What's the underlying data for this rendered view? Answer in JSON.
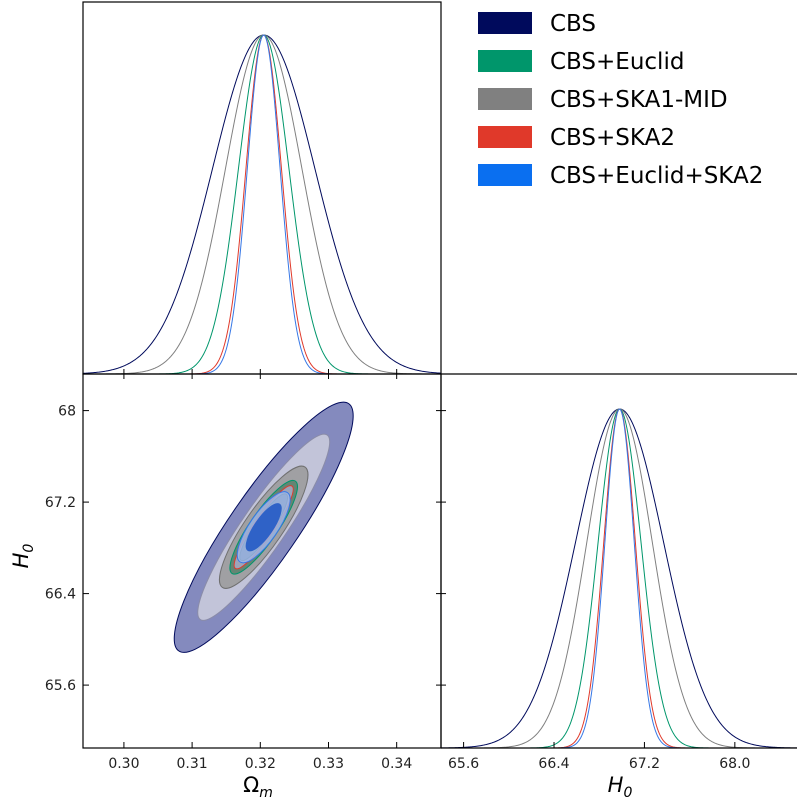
{
  "chart_data": [
    {
      "type": "line",
      "panel": "Omega_m marginal",
      "x_param": "Omega_m",
      "center": 0.3205,
      "series": [
        {
          "name": "CBS",
          "color": "#000a5c",
          "sigma": 0.0075
        },
        {
          "name": "CBS+Euclid",
          "color": "#00966b",
          "sigma": 0.0037
        },
        {
          "name": "CBS+SKA1-MID",
          "color": "#808080",
          "sigma": 0.0056
        },
        {
          "name": "CBS+SKA2",
          "color": "#e0392a",
          "sigma": 0.0026
        },
        {
          "name": "CBS+Euclid+SKA2",
          "color": "#3677e6",
          "sigma": 0.0024
        }
      ],
      "xlim": [
        0.294,
        0.3465
      ],
      "xticks": [
        "0.30",
        "0.31",
        "0.32",
        "0.33",
        "0.34"
      ]
    },
    {
      "type": "line",
      "panel": "H0 marginal",
      "x_param": "H0",
      "center": 66.98,
      "series": [
        {
          "name": "CBS",
          "color": "#000a5c",
          "sigma": 0.39
        },
        {
          "name": "CBS+Euclid",
          "color": "#00966b",
          "sigma": 0.19
        },
        {
          "name": "CBS+SKA1-MID",
          "color": "#808080",
          "sigma": 0.29
        },
        {
          "name": "CBS+SKA2",
          "color": "#e0392a",
          "sigma": 0.14
        },
        {
          "name": "CBS+Euclid+SKA2",
          "color": "#3677e6",
          "sigma": 0.13
        }
      ],
      "xlim": [
        65.4,
        68.55
      ],
      "xticks": [
        "65.6",
        "66.4",
        "67.2",
        "68.0"
      ]
    },
    {
      "type": "scatter",
      "panel": "Omega_m vs H0 contours",
      "x_param": "Omega_m",
      "y_param": "H0",
      "center": [
        0.3205,
        66.98
      ],
      "contours": [
        {
          "name": "CBS",
          "color": "#000a5c",
          "outer": {
            "semi_major": [
              0.0147,
              -0.96
            ],
            "semi_minor": [
              0.0,
              0.0
            ],
            "ellipse": [
              [
                0.3063,
                67.95
              ],
              [
                0.3352,
                65.88
              ]
            ]
          }
        },
        {
          "name": "CBS+SKA1-MID",
          "color": "#808080"
        },
        {
          "name": "CBS+Euclid",
          "color": "#00966b"
        },
        {
          "name": "CBS+SKA2",
          "color": "#e0392a"
        },
        {
          "name": "CBS+Euclid+SKA2",
          "color": "#3677e6"
        }
      ],
      "xlim": [
        0.294,
        0.3465
      ],
      "ylim": [
        65.05,
        68.32
      ],
      "xticks": [
        "0.30",
        "0.31",
        "0.32",
        "0.33",
        "0.34"
      ],
      "yticks": [
        "68",
        "67.2",
        "66.4",
        "65.6"
      ],
      "xlabel": "Ω",
      "xlabel_sub": "m",
      "ylabel": "H",
      "ylabel_sub": "0"
    }
  ],
  "h0_xlabel": "H",
  "h0_xlabel_sub": "0",
  "legend": [
    {
      "label": "CBS",
      "color": "#000a5c"
    },
    {
      "label": "CBS+Euclid",
      "color": "#00966b"
    },
    {
      "label": "CBS+SKA1-MID",
      "color": "#808080"
    },
    {
      "label": "CBS+SKA2",
      "color": "#e0392a"
    },
    {
      "label": "CBS+Euclid+SKA2",
      "color": "#0a6ff0"
    }
  ]
}
